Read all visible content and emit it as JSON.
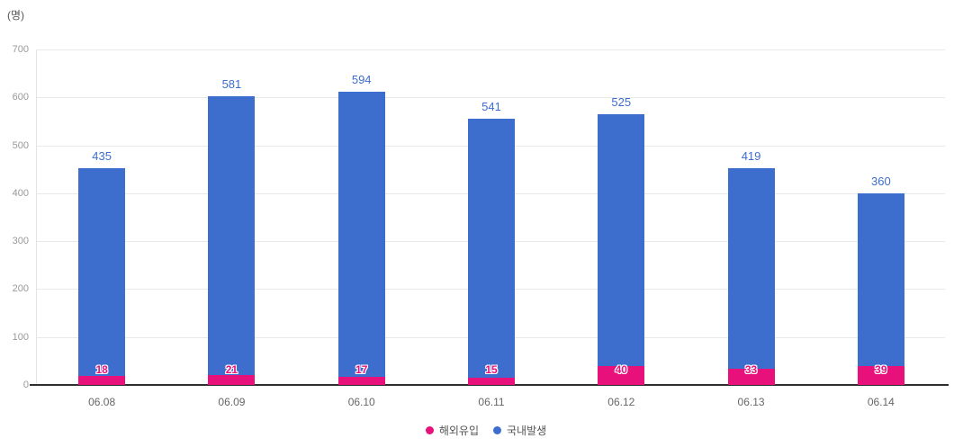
{
  "chart_data": {
    "type": "bar",
    "stacked": true,
    "unit_label": "(명)",
    "categories": [
      "06.08",
      "06.09",
      "06.10",
      "06.11",
      "06.12",
      "06.13",
      "06.14"
    ],
    "series": [
      {
        "name": "해외유입",
        "color": "#e8107a",
        "values": [
          18,
          21,
          17,
          15,
          40,
          33,
          39
        ]
      },
      {
        "name": "국내발생",
        "color": "#3d6ecd",
        "values": [
          435,
          581,
          594,
          541,
          525,
          419,
          360
        ]
      }
    ],
    "ylim": [
      0,
      700
    ],
    "yticks": [
      0,
      100,
      200,
      300,
      400,
      500,
      600,
      700
    ],
    "grid": true,
    "legend_position": "bottom"
  }
}
